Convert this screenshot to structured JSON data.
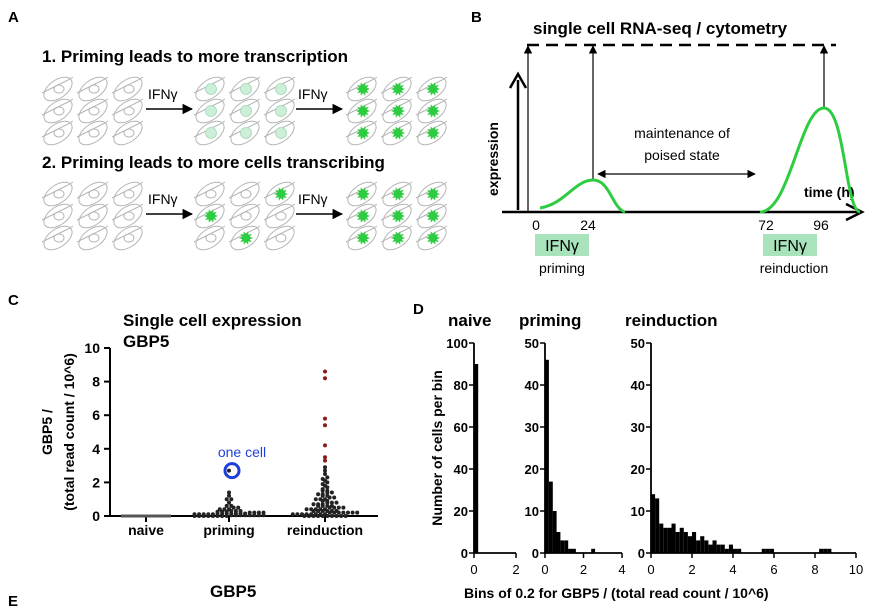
{
  "panels": {
    "a": {
      "letter": "A",
      "row1_title": "1. Priming leads to more transcription",
      "row2_title": "2. Priming leads to more cells transcribing",
      "arrow_label": "IFNγ"
    },
    "b": {
      "letter": "B",
      "title": "single cell RNA-seq / cytometry",
      "ylabel": "expression",
      "xlabel": "time (h)",
      "ticks": [
        "0",
        "24",
        "72",
        "96"
      ],
      "maintenance_line1": "maintenance of",
      "maintenance_line2": "poised state",
      "box_label": "IFNγ",
      "priming_label": "priming",
      "reinduction_label": "reinduction"
    },
    "c": {
      "letter": "C",
      "title_line1": "Single cell expression",
      "title_line2": "GBP5",
      "ylabel_line1": "GBP5 /",
      "ylabel_line2": "(total read count / 10^6)",
      "annotation": "one cell"
    },
    "d": {
      "letter": "D",
      "ylabel": "Number of cells per bin",
      "xlabel": "Bins of 0.2 for GBP5 / (total read count / 10^6)"
    },
    "e": {
      "letter": "E",
      "title": "GBP5"
    }
  },
  "colors": {
    "green": "#2ecc40",
    "green_light": "#cdeed8",
    "green_box": "#a8e3bb",
    "dark_red": "#8b1a1a",
    "blue": "#1f3fdc",
    "cell_outline": "#b5b5b5"
  },
  "chart_data": [
    {
      "id": "C",
      "type": "scatter",
      "title": "Single cell expression GBP5",
      "ylabel": "GBP5 / (total read count / 10^6)",
      "categories": [
        "naive",
        "priming",
        "reinduction"
      ],
      "ylim": [
        0,
        10
      ],
      "yticks": [
        "0",
        "2",
        "4",
        "6",
        "8",
        "10"
      ],
      "series": [
        {
          "category": "naive",
          "values": [
            0,
            0,
            0,
            0,
            0,
            0,
            0,
            0,
            0,
            0,
            0,
            0,
            0,
            0,
            0,
            0,
            0,
            0,
            0,
            0
          ]
        },
        {
          "category": "priming",
          "values": [
            0,
            0,
            0,
            0,
            0,
            0,
            0,
            0,
            0.05,
            0.05,
            0.05,
            0.05,
            0.05,
            0.05,
            0.05,
            0.05,
            0.1,
            0.1,
            0.1,
            0.1,
            0.1,
            0.1,
            0.1,
            0.15,
            0.15,
            0.15,
            0.15,
            0.15,
            0.2,
            0.2,
            0.2,
            0.2,
            0.25,
            0.25,
            0.25,
            0.3,
            0.3,
            0.3,
            0.4,
            0.4,
            0.4,
            0.5,
            0.5,
            0.6,
            0.6,
            0.8,
            1.0,
            1.0,
            1.2,
            1.4,
            2.7
          ]
        },
        {
          "category": "reinduction",
          "values": [
            0,
            0,
            0,
            0,
            0,
            0,
            0,
            0,
            0,
            0,
            0.1,
            0.1,
            0.1,
            0.1,
            0.1,
            0.1,
            0.1,
            0.1,
            0.2,
            0.2,
            0.2,
            0.2,
            0.2,
            0.2,
            0.2,
            0.3,
            0.3,
            0.3,
            0.3,
            0.3,
            0.3,
            0.4,
            0.4,
            0.4,
            0.4,
            0.4,
            0.5,
            0.5,
            0.5,
            0.5,
            0.6,
            0.6,
            0.6,
            0.6,
            0.7,
            0.7,
            0.7,
            0.8,
            0.8,
            0.8,
            0.9,
            0.9,
            1.0,
            1.0,
            1.0,
            1.1,
            1.1,
            1.2,
            1.2,
            1.3,
            1.3,
            1.4,
            1.4,
            1.5,
            1.5,
            1.6,
            1.7,
            1.8,
            1.9,
            2.0,
            2.1,
            2.2,
            2.3,
            2.5,
            2.7,
            2.9,
            3.3,
            3.5,
            4.2,
            5.4,
            5.8,
            8.2,
            8.6
          ]
        }
      ]
    },
    {
      "id": "D-naive",
      "type": "bar",
      "title": "naive",
      "bin_width": 0.2,
      "xlim": [
        0,
        2
      ],
      "ylim": [
        0,
        100
      ],
      "xticks": [
        "0",
        "2"
      ],
      "yticks": [
        "0",
        "20",
        "40",
        "60",
        "80",
        "100"
      ],
      "bins": [
        0
      ],
      "values": [
        90
      ]
    },
    {
      "id": "D-priming",
      "type": "bar",
      "title": "priming",
      "bin_width": 0.2,
      "xlim": [
        0,
        4
      ],
      "ylim": [
        0,
        50
      ],
      "xticks": [
        "0",
        "2",
        "4"
      ],
      "yticks": [
        "0",
        "10",
        "20",
        "30",
        "40",
        "50"
      ],
      "bins": [
        0,
        0.2,
        0.4,
        0.6,
        0.8,
        1.0,
        1.2,
        1.4,
        2.4
      ],
      "values": [
        46,
        17,
        10,
        5,
        3,
        3,
        1,
        1,
        1
      ]
    },
    {
      "id": "D-reinduction",
      "type": "bar",
      "title": "reinduction",
      "bin_width": 0.2,
      "xlim": [
        0,
        10
      ],
      "ylim": [
        0,
        50
      ],
      "xticks": [
        "0",
        "2",
        "4",
        "6",
        "8",
        "10"
      ],
      "yticks": [
        "0",
        "10",
        "20",
        "30",
        "40",
        "50"
      ],
      "bins": [
        0,
        0.2,
        0.4,
        0.6,
        0.8,
        1.0,
        1.2,
        1.4,
        1.6,
        1.8,
        2.0,
        2.2,
        2.4,
        2.6,
        2.8,
        3.0,
        3.2,
        3.4,
        3.6,
        3.8,
        4.0,
        4.2,
        5.4,
        5.6,
        5.8,
        8.2,
        8.4,
        8.6
      ],
      "values": [
        14,
        13,
        7,
        6,
        6,
        7,
        5,
        6,
        5,
        4,
        5,
        3,
        4,
        3,
        2,
        3,
        2,
        2,
        1,
        2,
        1,
        1,
        1,
        1,
        1,
        1,
        1,
        1
      ]
    }
  ]
}
